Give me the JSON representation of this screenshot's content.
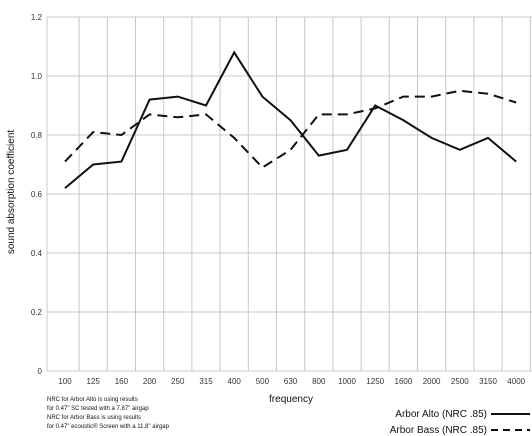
{
  "chart_data": {
    "type": "line",
    "title": "",
    "xlabel": "frequency",
    "ylabel": "sound absorption coefficient",
    "categories": [
      "100",
      "125",
      "160",
      "200",
      "250",
      "315",
      "400",
      "500",
      "630",
      "800",
      "1000",
      "1250",
      "1600",
      "2000",
      "2500",
      "3150",
      "4000"
    ],
    "ylim": [
      0,
      1.2
    ],
    "yticks": [
      "0",
      "0.2",
      "0.4",
      "0.6",
      "0.8",
      "1.0",
      "1.2"
    ],
    "grid": "vertical and horizontal",
    "legend_position": "bottom-right",
    "series": [
      {
        "name": "Arbor Alto (NRC .85)",
        "line_style": "solid",
        "values": [
          0.62,
          0.7,
          0.71,
          0.92,
          0.93,
          0.9,
          1.08,
          0.93,
          0.85,
          0.73,
          0.75,
          0.9,
          0.85,
          0.79,
          0.75,
          0.79,
          0.71
        ]
      },
      {
        "name": "Arbor Bass (NRC .85)",
        "line_style": "dashed",
        "values": [
          0.71,
          0.81,
          0.8,
          0.87,
          0.86,
          0.87,
          0.79,
          0.69,
          0.75,
          0.87,
          0.87,
          0.89,
          0.93,
          0.93,
          0.95,
          0.94,
          0.91
        ]
      }
    ],
    "annotations": [
      "NRC for Arbor Alto is using results",
      "for 0.47\" SC tested with a 7.87\" airgap",
      "NRC for Arbor Bass is using results",
      "for 0.47\" ecoustic® Screen with a 11.8\" airgap"
    ]
  },
  "colors": {
    "grid": "#c8c8c8",
    "line": "#111111",
    "text": "#222222"
  }
}
